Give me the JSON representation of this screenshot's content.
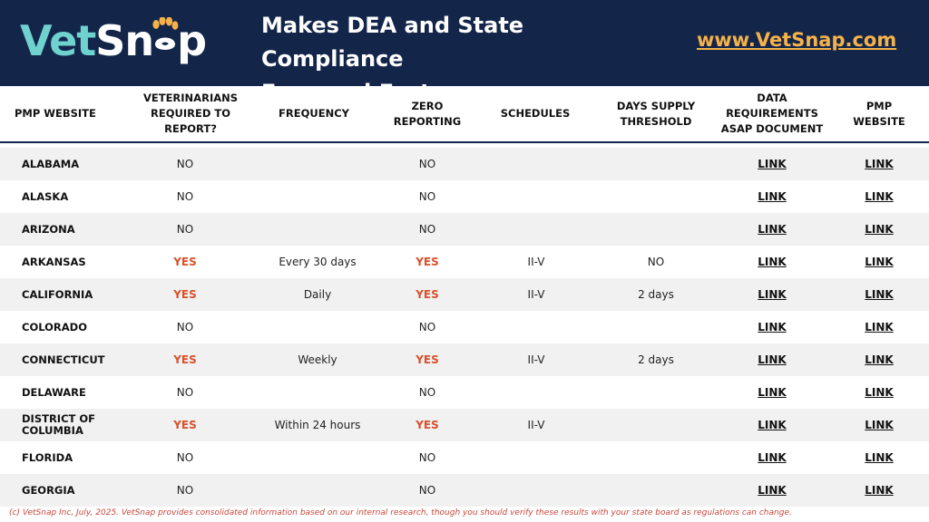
{
  "brand": {
    "logo_part1": "Vet",
    "logo_part2": "Sn",
    "logo_part3": "p",
    "logo_text": "VetSnap",
    "paw_icon": "paw-icon",
    "title_line1": "Makes DEA and State Compliance",
    "title_line2": "Easy and Fast",
    "website": "www.VetSnap.com",
    "colors": {
      "navy": "#13264a",
      "teal": "#6fd2cf",
      "orange": "#f6b24a",
      "yes_red": "#d9512c"
    }
  },
  "table": {
    "headers": {
      "pmp_website": "PMP WEBSITE",
      "vets_required": "VETERINARIANS REQUIRED TO REPORT?",
      "frequency": "FREQUENCY",
      "zero_reporting": "ZERO REPORTING",
      "schedules": "SCHEDULES",
      "days_supply": "DAYS SUPPLY THRESHOLD",
      "data_requirements": "DATA REQUIREMENTS ASAP DOCUMENT",
      "pmp_site": "PMP WEBSITE"
    },
    "rows": [
      {
        "state": "ALABAMA",
        "required": "NO",
        "frequency": "",
        "zero": "NO",
        "schedules": "",
        "threshold": "",
        "data_link": "LINK",
        "pmp_link": "LINK"
      },
      {
        "state": "ALASKA",
        "required": "NO",
        "frequency": "",
        "zero": "NO",
        "schedules": "",
        "threshold": "",
        "data_link": "LINK",
        "pmp_link": "LINK"
      },
      {
        "state": "ARIZONA",
        "required": "NO",
        "frequency": "",
        "zero": "NO",
        "schedules": "",
        "threshold": "",
        "data_link": "LINK",
        "pmp_link": "LINK"
      },
      {
        "state": "ARKANSAS",
        "required": "YES",
        "frequency": "Every 30 days",
        "zero": "YES",
        "schedules": "II-V",
        "threshold": "NO",
        "data_link": "LINK",
        "pmp_link": "LINK"
      },
      {
        "state": "CALIFORNIA",
        "required": "YES",
        "frequency": "Daily",
        "zero": "YES",
        "schedules": "II-V",
        "threshold": "2 days",
        "data_link": "LINK",
        "pmp_link": "LINK"
      },
      {
        "state": "COLORADO",
        "required": "NO",
        "frequency": "",
        "zero": "NO",
        "schedules": "",
        "threshold": "",
        "data_link": "LINK",
        "pmp_link": "LINK"
      },
      {
        "state": "CONNECTICUT",
        "required": "YES",
        "frequency": "Weekly",
        "zero": "YES",
        "schedules": "II-V",
        "threshold": "2 days",
        "data_link": "LINK",
        "pmp_link": "LINK"
      },
      {
        "state": "DELAWARE",
        "required": "NO",
        "frequency": "",
        "zero": "NO",
        "schedules": "",
        "threshold": "",
        "data_link": "LINK",
        "pmp_link": "LINK"
      },
      {
        "state": "DISTRICT OF COLUMBIA",
        "required": "YES",
        "frequency": "Within 24 hours",
        "zero": "YES",
        "schedules": "II-V",
        "threshold": "",
        "data_link": "LINK",
        "pmp_link": "LINK"
      },
      {
        "state": "FLORIDA",
        "required": "NO",
        "frequency": "",
        "zero": "NO",
        "schedules": "",
        "threshold": "",
        "data_link": "LINK",
        "pmp_link": "LINK"
      },
      {
        "state": "GEORGIA",
        "required": "NO",
        "frequency": "",
        "zero": "NO",
        "schedules": "",
        "threshold": "",
        "data_link": "LINK",
        "pmp_link": "LINK"
      }
    ]
  },
  "footnote": "(c) VetSnap Inc, July, 2025. VetSnap provides consolidated information based on our internal research, though you should verify these results with your state board as regulations can change."
}
